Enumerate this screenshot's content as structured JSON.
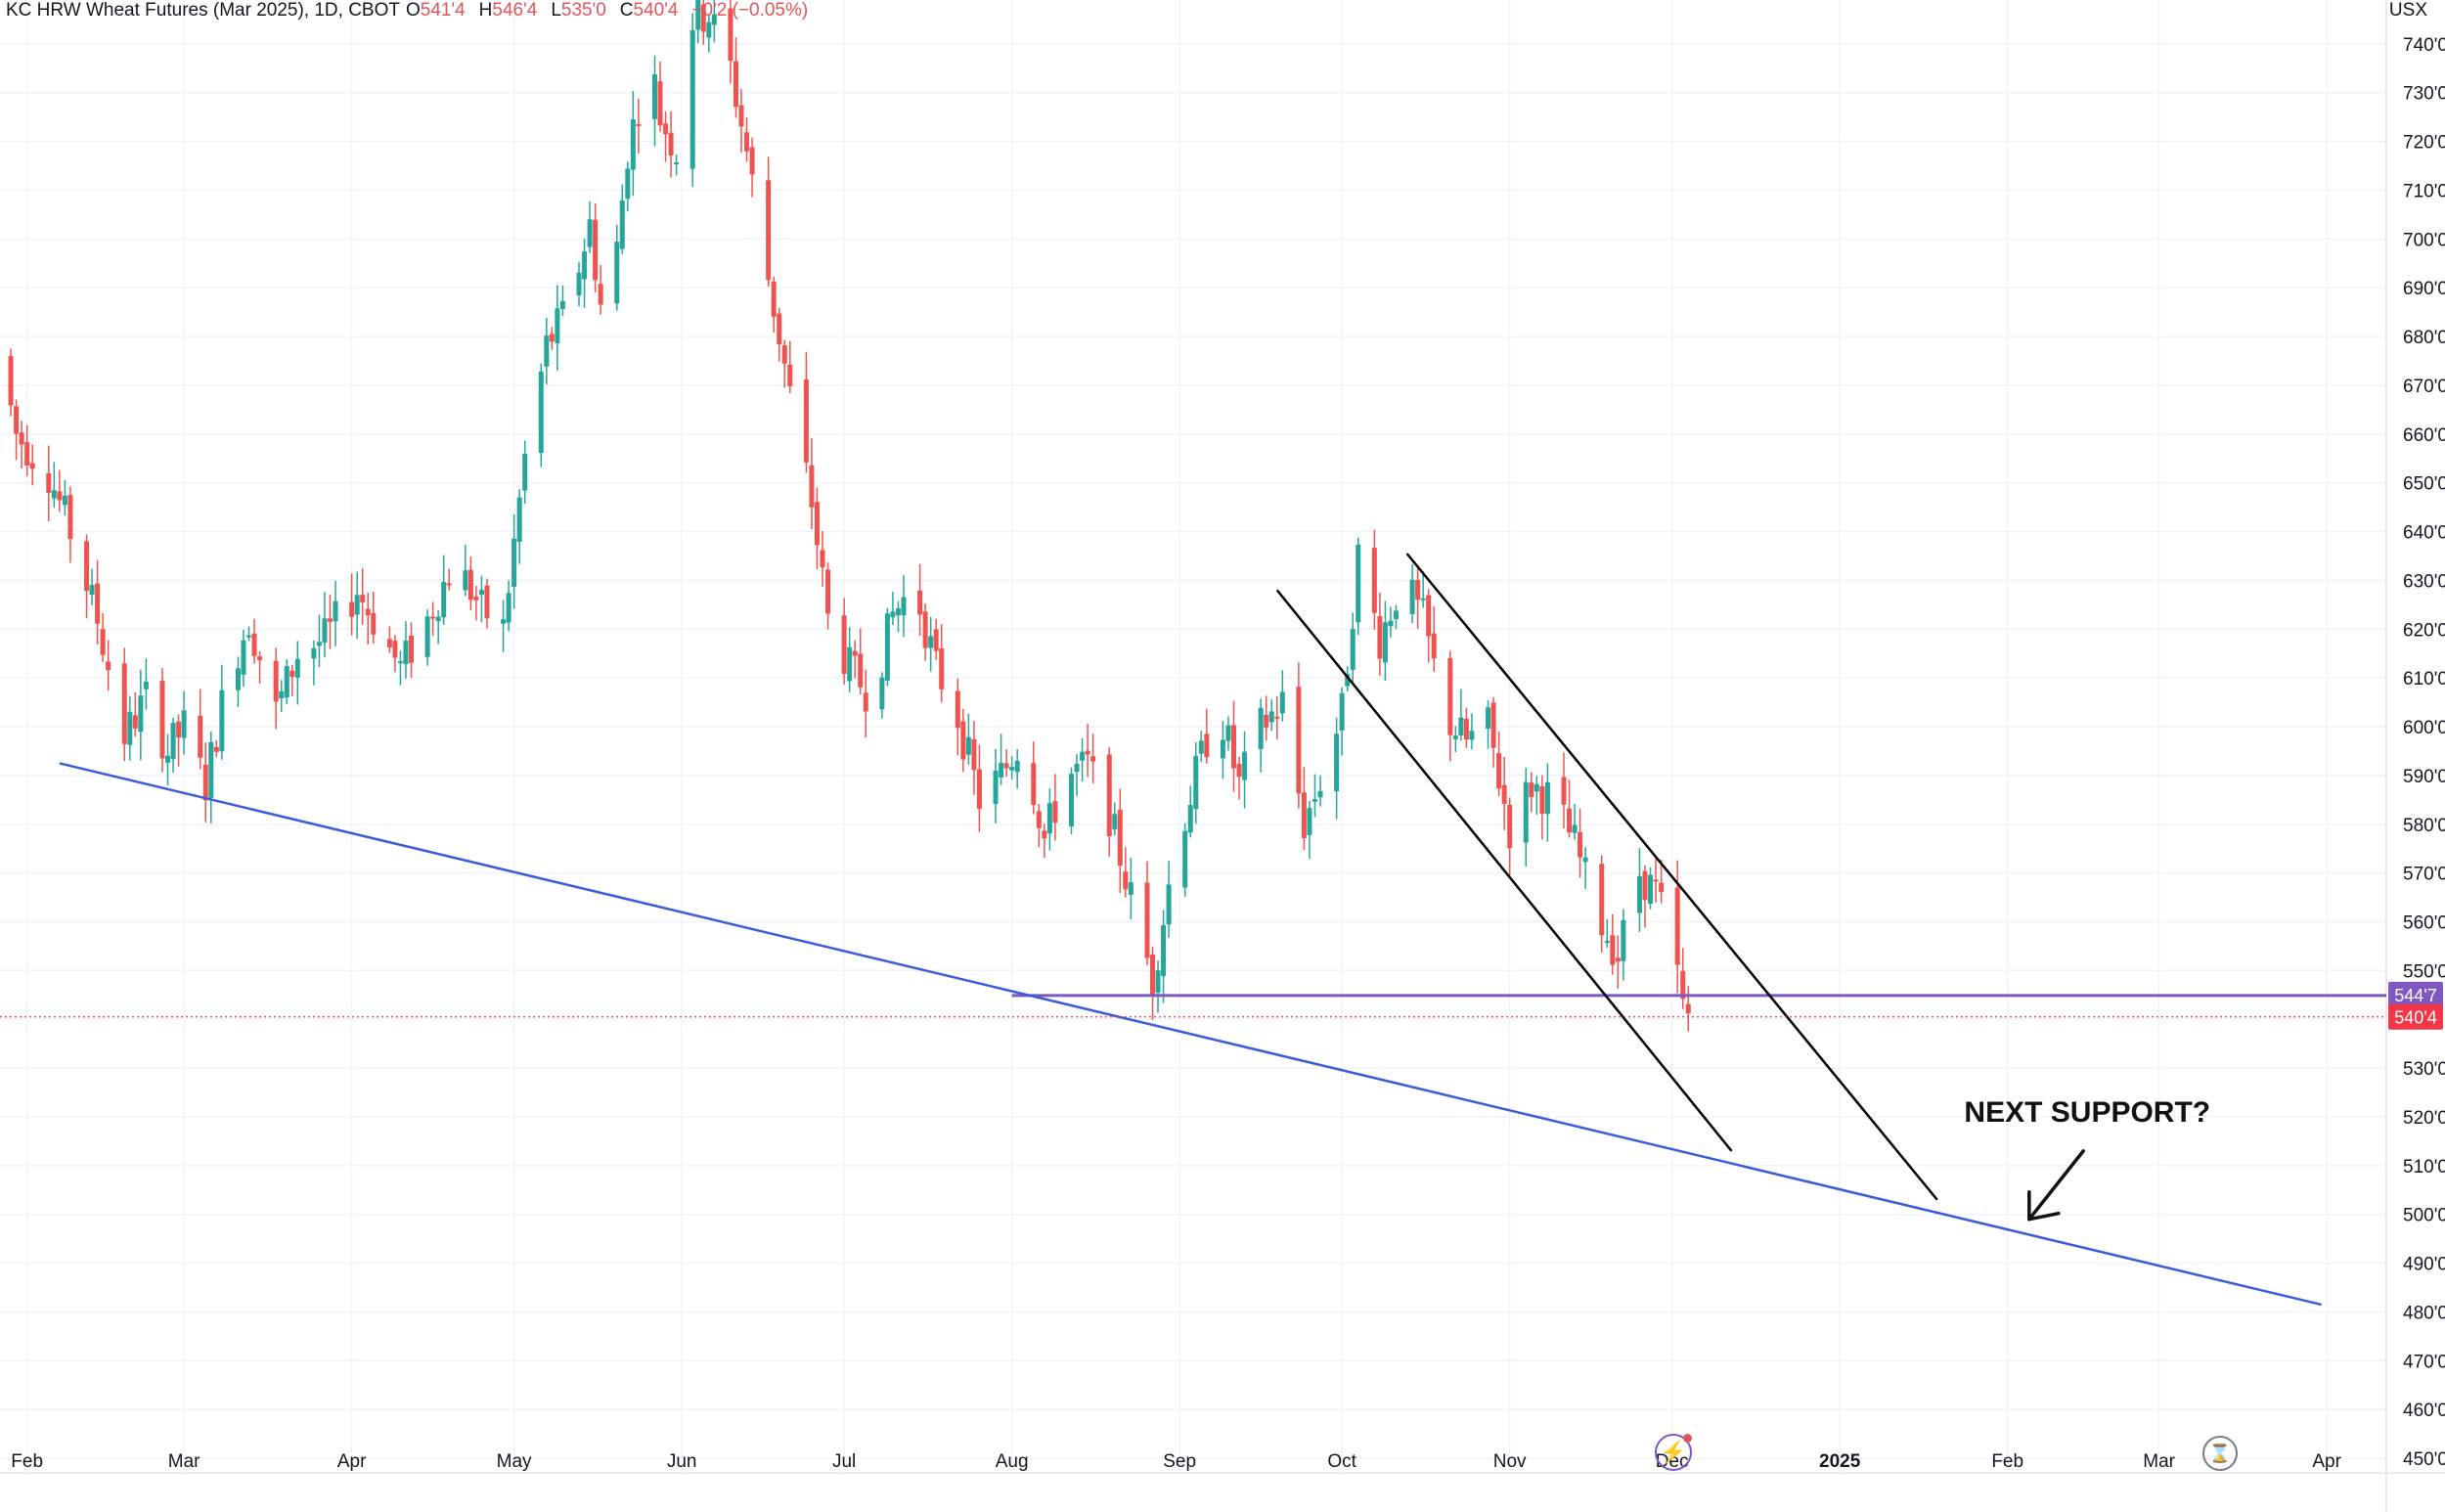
{
  "legend": {
    "title": "KC HRW Wheat Futures (Mar 2025), 1D, CBOT",
    "open_label": "O",
    "open": "541'4",
    "high_label": "H",
    "high": "546'4",
    "low_label": "L",
    "low": "535'0",
    "close_label": "C",
    "close": "540'4",
    "change": "−0'2 (−0.05%)"
  },
  "unit": "USX",
  "icons": {
    "bolt": "lightning-icon",
    "timer": "hourglass-icon"
  },
  "colors": {
    "up": "#26a69a",
    "down": "#ef5350",
    "level": "#7e57c2",
    "current": "#f23645",
    "trend": "#3b5bdb",
    "channel": "#000000"
  },
  "chart_data": {
    "type": "candlestick",
    "y_axis": {
      "range": [
        447,
        749
      ],
      "ticks": [
        450,
        460,
        470,
        480,
        490,
        500,
        510,
        520,
        530,
        540,
        550,
        560,
        570,
        580,
        590,
        600,
        610,
        620,
        630,
        640,
        650,
        660,
        670,
        680,
        690,
        700,
        710,
        720,
        730,
        740
      ],
      "tick_labels": [
        "450'0",
        "460'0",
        "470'0",
        "480'0",
        "490'0",
        "500'0",
        "510'0",
        "520'0",
        "530'0",
        "",
        "550'0",
        "560'0",
        "570'0",
        "580'0",
        "590'0",
        "600'0",
        "610'0",
        "620'0",
        "630'0",
        "640'0",
        "650'0",
        "660'0",
        "670'0",
        "680'0",
        "690'0",
        "700'0",
        "710'0",
        "720'0",
        "730'0",
        "740'0"
      ]
    },
    "x_axis": {
      "range": [
        "2024-01-27",
        "2025-04-12"
      ],
      "ticks": [
        {
          "date": "2024-02-01",
          "label": "Feb",
          "bold": false
        },
        {
          "date": "2024-03-01",
          "label": "Mar",
          "bold": false
        },
        {
          "date": "2024-04-01",
          "label": "Apr",
          "bold": false
        },
        {
          "date": "2024-05-01",
          "label": "May",
          "bold": false
        },
        {
          "date": "2024-06-01",
          "label": "Jun",
          "bold": false
        },
        {
          "date": "2024-07-01",
          "label": "Jul",
          "bold": false
        },
        {
          "date": "2024-08-01",
          "label": "Aug",
          "bold": false
        },
        {
          "date": "2024-09-01",
          "label": "Sep",
          "bold": false
        },
        {
          "date": "2024-10-01",
          "label": "Oct",
          "bold": false
        },
        {
          "date": "2024-11-01",
          "label": "Nov",
          "bold": false
        },
        {
          "date": "2024-12-01",
          "label": "Dec",
          "bold": false
        },
        {
          "date": "2025-01-01",
          "label": "2025",
          "bold": true
        },
        {
          "date": "2025-02-01",
          "label": "Feb",
          "bold": false
        },
        {
          "date": "2025-03-01",
          "label": "Mar",
          "bold": false
        },
        {
          "date": "2025-04-01",
          "label": "Apr",
          "bold": false
        }
      ]
    },
    "price_path": [
      [
        "2024-01-27",
        676
      ],
      [
        "2024-01-30",
        660
      ],
      [
        "2024-02-05",
        652
      ],
      [
        "2024-02-09",
        640
      ],
      [
        "2024-02-14",
        622
      ],
      [
        "2024-02-19",
        598
      ],
      [
        "2024-02-23",
        606
      ],
      [
        "2024-02-27",
        595
      ],
      [
        "2024-03-01",
        600
      ],
      [
        "2024-03-05",
        588
      ],
      [
        "2024-03-09",
        610
      ],
      [
        "2024-03-13",
        622
      ],
      [
        "2024-03-18",
        603
      ],
      [
        "2024-03-22",
        615
      ],
      [
        "2024-03-27",
        618
      ],
      [
        "2024-04-02",
        628
      ],
      [
        "2024-04-06",
        620
      ],
      [
        "2024-04-10",
        612
      ],
      [
        "2024-04-15",
        622
      ],
      [
        "2024-04-20",
        634
      ],
      [
        "2024-04-25",
        624
      ],
      [
        "2024-04-29",
        620
      ],
      [
        "2024-05-03",
        655
      ],
      [
        "2024-05-07",
        678
      ],
      [
        "2024-05-11",
        686
      ],
      [
        "2024-05-15",
        703
      ],
      [
        "2024-05-18",
        678
      ],
      [
        "2024-05-22",
        718
      ],
      [
        "2024-05-26",
        738
      ],
      [
        "2024-05-28",
        725
      ],
      [
        "2024-05-31",
        718
      ],
      [
        "2024-06-03",
        745
      ],
      [
        "2024-06-06",
        746
      ],
      [
        "2024-06-10",
        735
      ],
      [
        "2024-06-13",
        718
      ],
      [
        "2024-06-17",
        692
      ],
      [
        "2024-06-21",
        668
      ],
      [
        "2024-06-25",
        646
      ],
      [
        "2024-06-28",
        622
      ],
      [
        "2024-07-02",
        612
      ],
      [
        "2024-07-06",
        606
      ],
      [
        "2024-07-10",
        623
      ],
      [
        "2024-07-14",
        629
      ],
      [
        "2024-07-18",
        612
      ],
      [
        "2024-07-22",
        602
      ],
      [
        "2024-07-26",
        585
      ],
      [
        "2024-07-30",
        590
      ],
      [
        "2024-08-03",
        598
      ],
      [
        "2024-08-07",
        577
      ],
      [
        "2024-08-11",
        590
      ],
      [
        "2024-08-15",
        592
      ],
      [
        "2024-08-19",
        582
      ],
      [
        "2024-08-23",
        565
      ],
      [
        "2024-08-27",
        548
      ],
      [
        "2024-08-31",
        574
      ],
      [
        "2024-09-04",
        590
      ],
      [
        "2024-09-08",
        605
      ],
      [
        "2024-09-12",
        588
      ],
      [
        "2024-09-16",
        600
      ],
      [
        "2024-09-20",
        605
      ],
      [
        "2024-09-24",
        580
      ],
      [
        "2024-09-28",
        592
      ],
      [
        "2024-10-01",
        603
      ],
      [
        "2024-10-04",
        635
      ],
      [
        "2024-10-08",
        618
      ],
      [
        "2024-10-12",
        630
      ],
      [
        "2024-10-16",
        622
      ],
      [
        "2024-10-20",
        602
      ],
      [
        "2024-10-24",
        597
      ],
      [
        "2024-10-28",
        600
      ],
      [
        "2024-11-01",
        579
      ],
      [
        "2024-11-05",
        588
      ],
      [
        "2024-11-09",
        585
      ],
      [
        "2024-11-13",
        576
      ],
      [
        "2024-11-17",
        562
      ],
      [
        "2024-11-21",
        553
      ],
      [
        "2024-11-25",
        570
      ],
      [
        "2024-11-28",
        566
      ],
      [
        "2024-12-01",
        556
      ],
      [
        "2024-12-03",
        542
      ],
      [
        "2024-12-04",
        540.5
      ]
    ],
    "last_price": "540'4",
    "annotations": [
      {
        "type": "horizontal_level",
        "label": "544'7",
        "value": 544.875,
        "from": "2024-08-01"
      },
      {
        "type": "trendline",
        "points": [
          [
            "2024-02-07",
            592.5
          ],
          [
            "2025-03-31",
            481.5
          ]
        ]
      },
      {
        "type": "channel_line",
        "points": [
          [
            "2024-09-19",
            628
          ],
          [
            "2024-12-12",
            513
          ]
        ]
      },
      {
        "type": "channel_line",
        "points": [
          [
            "2024-10-13",
            635.5
          ],
          [
            "2025-01-19",
            503
          ]
        ]
      },
      {
        "type": "text",
        "text": "NEXT SUPPORT?",
        "at": [
          "2025-01-24",
          519
        ]
      },
      {
        "type": "arrow",
        "from": [
          "2025-02-15",
          513
        ],
        "to": [
          "2025-02-05",
          499
        ]
      }
    ]
  }
}
